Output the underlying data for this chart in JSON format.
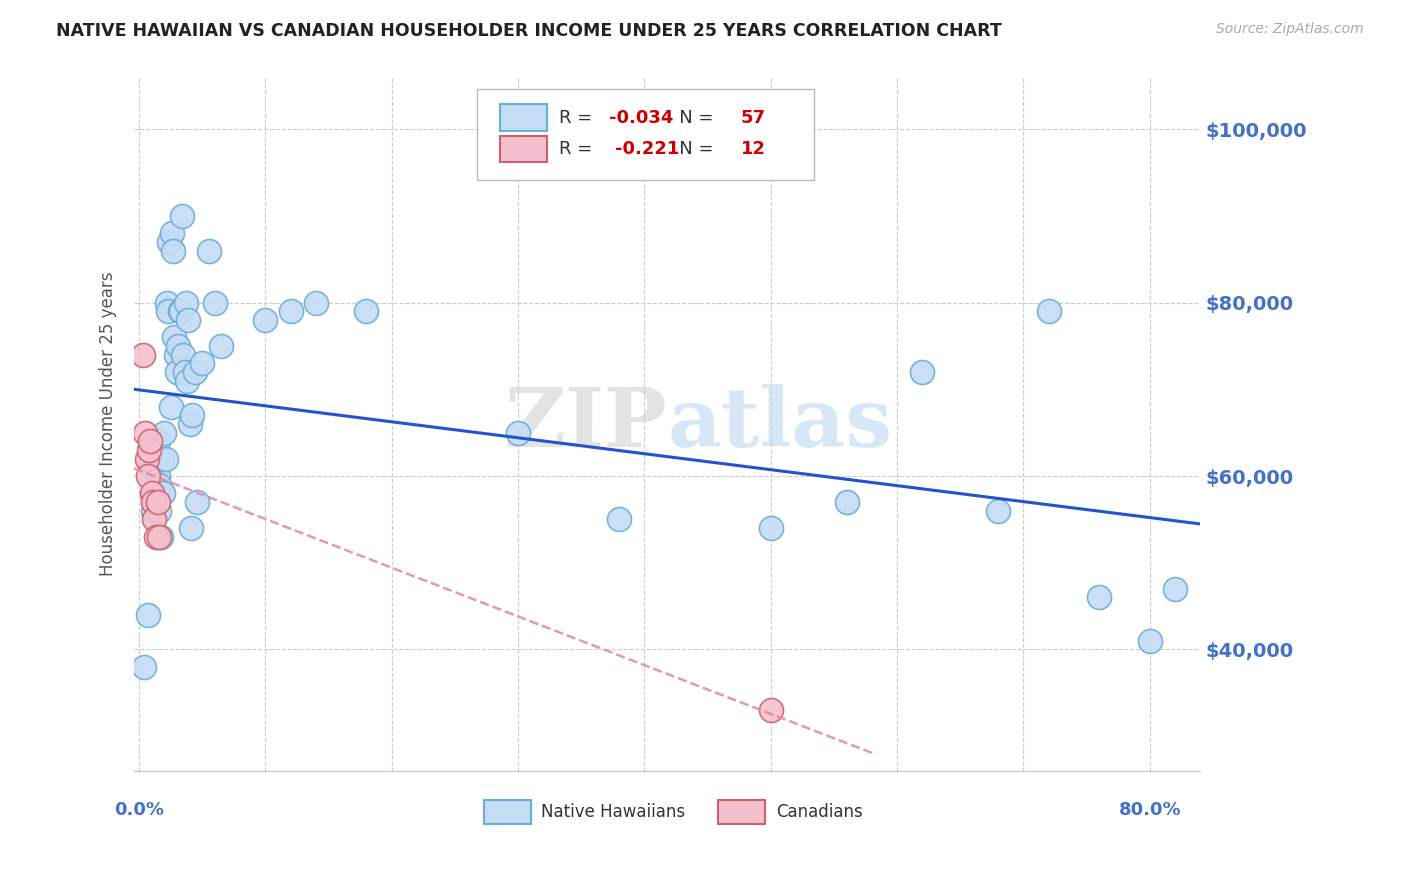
{
  "title": "NATIVE HAWAIIAN VS CANADIAN HOUSEHOLDER INCOME UNDER 25 YEARS CORRELATION CHART",
  "source": "Source: ZipAtlas.com",
  "ylabel": "Householder Income Under 25 years",
  "ytick_labels": [
    "$40,000",
    "$60,000",
    "$80,000",
    "$100,000"
  ],
  "ytick_values": [
    40000,
    60000,
    80000,
    100000
  ],
  "ymin": 26000,
  "ymax": 106000,
  "xmin": -0.004,
  "xmax": 0.84,
  "watermark": "ZIPatlas",
  "nh_color": "#c5dcf5",
  "nh_edge": "#6baed6",
  "ca_color": "#f5c0cd",
  "ca_edge": "#d06070",
  "nh_line_color": "#2255cc",
  "ca_line_color": "#e08898",
  "axis_color": "#4472c4",
  "grid_color": "#cccccc",
  "title_color": "#333333",
  "nh_R": -0.034,
  "nh_N": 57,
  "ca_R": -0.221,
  "ca_N": 12,
  "native_hawaiians_x": [
    0.004,
    0.007,
    0.01,
    0.011,
    0.012,
    0.013,
    0.014,
    0.015,
    0.015,
    0.016,
    0.016,
    0.017,
    0.018,
    0.019,
    0.02,
    0.021,
    0.022,
    0.023,
    0.024,
    0.025,
    0.026,
    0.027,
    0.028,
    0.029,
    0.03,
    0.031,
    0.032,
    0.033,
    0.034,
    0.035,
    0.036,
    0.037,
    0.038,
    0.039,
    0.04,
    0.041,
    0.042,
    0.044,
    0.046,
    0.05,
    0.055,
    0.06,
    0.065,
    0.1,
    0.12,
    0.14,
    0.18,
    0.3,
    0.38,
    0.5,
    0.56,
    0.62,
    0.68,
    0.72,
    0.76,
    0.8,
    0.82
  ],
  "native_hawaiians_y": [
    38000,
    44000,
    61000,
    56000,
    58000,
    62000,
    57000,
    64000,
    60000,
    59000,
    56000,
    53000,
    62000,
    58000,
    65000,
    62000,
    80000,
    79000,
    87000,
    68000,
    88000,
    86000,
    76000,
    74000,
    72000,
    75000,
    79000,
    79000,
    90000,
    74000,
    72000,
    80000,
    71000,
    78000,
    66000,
    54000,
    67000,
    72000,
    57000,
    73000,
    86000,
    80000,
    75000,
    78000,
    79000,
    80000,
    79000,
    65000,
    55000,
    54000,
    57000,
    72000,
    56000,
    79000,
    46000,
    41000,
    47000
  ],
  "canadians_x": [
    0.003,
    0.005,
    0.006,
    0.007,
    0.008,
    0.009,
    0.01,
    0.011,
    0.012,
    0.013,
    0.015,
    0.016
  ],
  "canadians_y": [
    74000,
    65000,
    62000,
    60000,
    63000,
    64000,
    58000,
    57000,
    55000,
    53000,
    57000,
    53000
  ],
  "ca_outlier_x": [
    0.5
  ],
  "ca_outlier_y": [
    33000
  ]
}
